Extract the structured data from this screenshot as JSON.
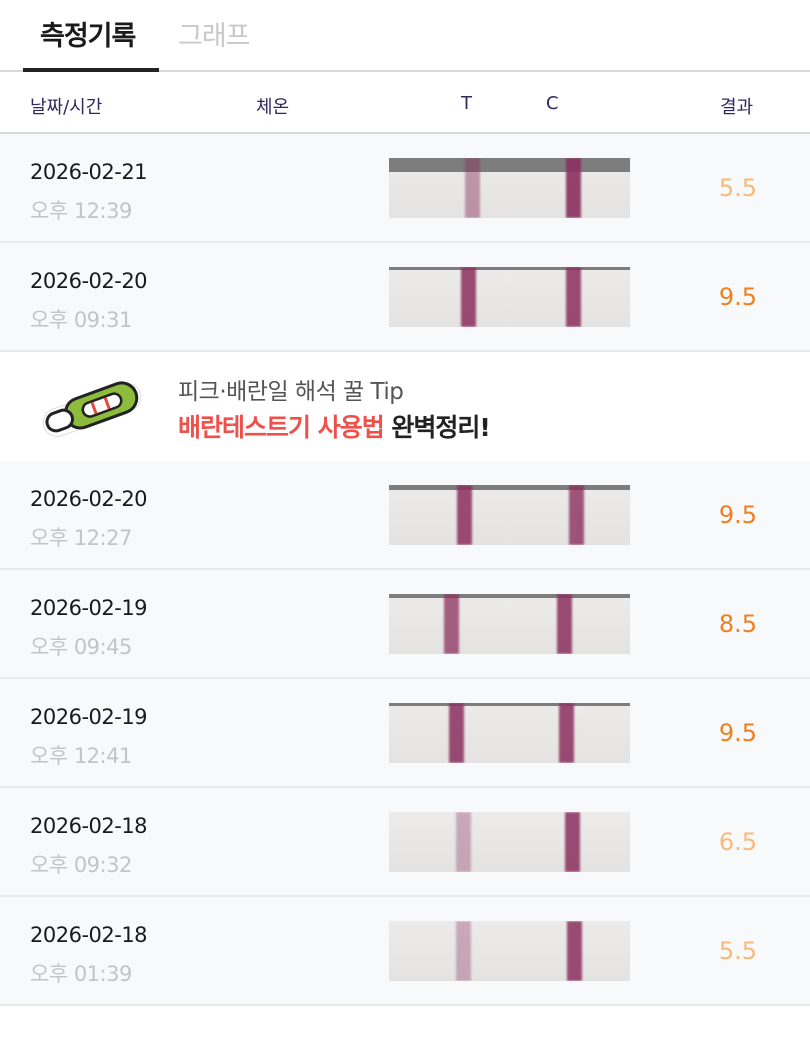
{
  "tabs": [
    {
      "label": "측정기록",
      "active": true
    },
    {
      "label": "그래프",
      "active": false
    }
  ],
  "columns": {
    "datetime": "날짜/시간",
    "temp": "체온",
    "t": "T",
    "c": "C",
    "result": "결과"
  },
  "colors": {
    "result_high": "#f07f1e",
    "result_low": "#f9b97a",
    "banner_accent": "#f0504a"
  },
  "rows_before": [
    {
      "date": "2026-02-21",
      "time": "오후 12:39",
      "result": "5.5",
      "level": "low"
    },
    {
      "date": "2026-02-20",
      "time": "오후 09:31",
      "result": "9.5",
      "level": "high"
    }
  ],
  "banner": {
    "line1": "피크·배란일 해석 꿀 Tip",
    "line2_accent": "배란테스트기 사용법",
    "line2_rest": " 완벽정리!",
    "icon": "ovulation-test-icon"
  },
  "rows_after": [
    {
      "date": "2026-02-20",
      "time": "오후 12:27",
      "result": "9.5",
      "level": "high"
    },
    {
      "date": "2026-02-19",
      "time": "오후 09:45",
      "result": "8.5",
      "level": "high"
    },
    {
      "date": "2026-02-19",
      "time": "오후 12:41",
      "result": "9.5",
      "level": "high"
    },
    {
      "date": "2026-02-18",
      "time": "오후 09:32",
      "result": "6.5",
      "level": "low"
    },
    {
      "date": "2026-02-18",
      "time": "오후 01:39",
      "result": "5.5",
      "level": "low"
    }
  ]
}
